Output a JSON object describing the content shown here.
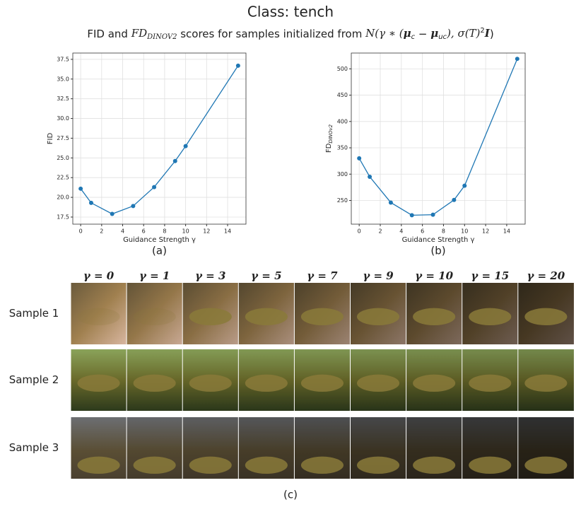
{
  "header": {
    "title": "Class: tench",
    "subtitle": [
      "FID and ",
      "FD",
      "DINOV2",
      " scores for samples initialized from ",
      "N(γ ∗ (",
      "μ",
      "c",
      " − ",
      "μ",
      "uc",
      "), σ(T)",
      "2",
      "I",
      ")"
    ]
  },
  "chart_data": [
    {
      "type": "line",
      "caption": "(a)",
      "xlabel": "Guidance Strength γ",
      "ylabel": "FID",
      "color": "#1f77b4",
      "grid": true,
      "x": [
        0,
        1,
        3,
        5,
        7,
        9,
        10,
        15
      ],
      "values": [
        21.1,
        19.3,
        17.9,
        18.9,
        21.3,
        24.6,
        26.5,
        36.7
      ],
      "xlim": [
        -0.75,
        15.75
      ],
      "xticks": [
        0,
        2,
        4,
        6,
        8,
        10,
        12,
        14
      ],
      "ylim": [
        16.6,
        38.3
      ],
      "yticks": [
        17.5,
        {
          "value": 20,
          "label": "20.0"
        },
        22.5,
        {
          "value": 25,
          "label": "25.0"
        },
        27.5,
        {
          "value": 30,
          "label": "30.0"
        },
        32.5,
        {
          "value": 35,
          "label": "35.0"
        },
        37.5
      ]
    },
    {
      "type": "line",
      "caption": "(b)",
      "xlabel": "Guidance Strength γ",
      "ylabel": "FD",
      "ylabel_sub": "DINOv2",
      "color": "#1f77b4",
      "grid": true,
      "x": [
        0,
        1,
        3,
        5,
        7,
        9,
        10,
        15
      ],
      "values": [
        330,
        295,
        246,
        222,
        223,
        251,
        278,
        519
      ],
      "xlim": [
        -0.75,
        15.75
      ],
      "xticks": [
        0,
        2,
        4,
        6,
        8,
        10,
        12,
        14
      ],
      "ylim": [
        205,
        530
      ],
      "yticks": [
        250,
        300,
        350,
        400,
        450,
        500
      ]
    }
  ],
  "samples": {
    "columns": [
      "γ = 0",
      "γ = 1",
      "γ = 3",
      "γ = 5",
      "γ = 7",
      "γ = 9",
      "γ = 10",
      "γ = 15",
      "γ = 20"
    ],
    "rows": [
      "Sample 1",
      "Sample 2",
      "Sample 3"
    ],
    "caption": "(c)"
  }
}
